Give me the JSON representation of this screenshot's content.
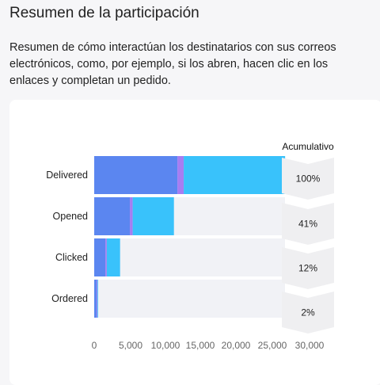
{
  "header": {
    "title": "Resumen de la participación",
    "description": "Resumen de cómo interactúan los destinatarios con sus correos electrónicos, como, por ejemplo, si los abren, hacen clic en los enlaces y completan un pedido."
  },
  "colors": {
    "primary": "#5b86f0",
    "purple": "#a67df2",
    "cyan": "#39c2fb",
    "track": "#f1f2f6",
    "chevron": "#efeff1"
  },
  "chart_data": {
    "type": "bar",
    "orientation": "horizontal",
    "stacked": true,
    "categories": [
      "Delivered",
      "Opened",
      "Clicked",
      "Ordered"
    ],
    "series": [
      {
        "values": [
          11900,
          5100,
          1600,
          350
        ],
        "color": "#5b86f0"
      },
      {
        "values": [
          900,
          400,
          200,
          100
        ],
        "color": "#a67df2"
      },
      {
        "values": [
          14500,
          5900,
          1900,
          100
        ],
        "color": "#39c2fb"
      }
    ],
    "xlim": [
      0,
      30000
    ],
    "xticks": [
      "0",
      "5,000",
      "10,000",
      "15,000",
      "20,000",
      "25,000",
      "30,000"
    ],
    "cumulative": {
      "title": "Acumulativo",
      "values": [
        "100%",
        "41%",
        "12%",
        "2%"
      ]
    }
  }
}
